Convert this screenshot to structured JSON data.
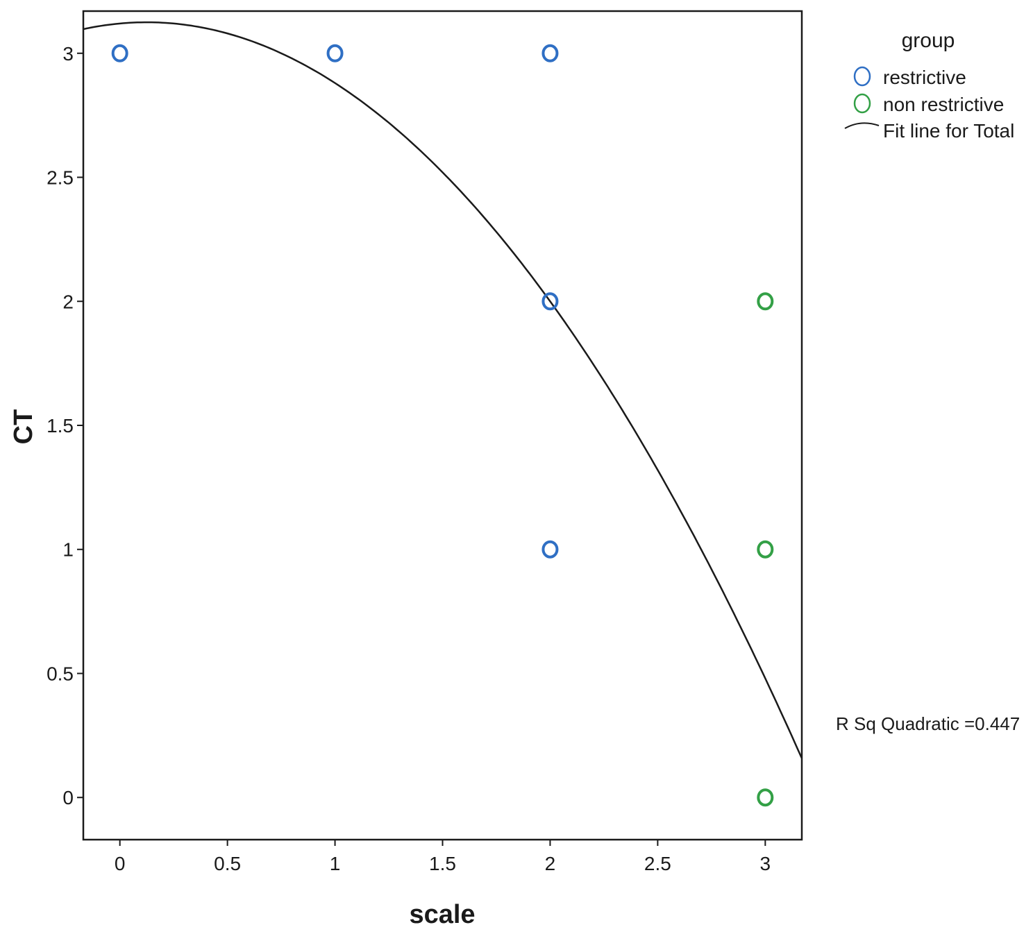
{
  "chart_data": {
    "type": "scatter",
    "xlabel": "scale",
    "ylabel": "CT",
    "xlim": [
      -0.17,
      3.17
    ],
    "ylim": [
      -0.17,
      3.17
    ],
    "x_ticks": [
      0,
      0.5,
      1,
      1.5,
      2,
      2.5,
      3
    ],
    "x_tick_labels": [
      "0",
      "0.5",
      "1",
      "1.5",
      "2",
      "2.5",
      "3"
    ],
    "y_ticks": [
      0,
      0.5,
      1,
      1.5,
      2,
      2.5,
      3
    ],
    "y_tick_labels": [
      "0",
      "0.5",
      "1",
      "1.5",
      "2",
      "2.5",
      "3"
    ],
    "grid": false,
    "legend": {
      "title": "group",
      "placement": "top-right",
      "fit_label": "Fit line for Total"
    },
    "series": [
      {
        "name": "restrictive",
        "color": "#2f6fc4",
        "points": [
          [
            0,
            3
          ],
          [
            1,
            3
          ],
          [
            2,
            3
          ],
          [
            2,
            2
          ],
          [
            2,
            1
          ]
        ]
      },
      {
        "name": "non restrictive",
        "color": "#33a046",
        "points": [
          [
            3,
            2
          ],
          [
            3,
            1
          ],
          [
            3,
            0
          ]
        ]
      }
    ],
    "fit_line": {
      "type": "quadratic",
      "coefficients": {
        "a": -0.32,
        "b": 0.08,
        "c": 3.12
      },
      "color": "#1a1a1a"
    },
    "annotation": "R Sq Quadratic =0.447"
  }
}
